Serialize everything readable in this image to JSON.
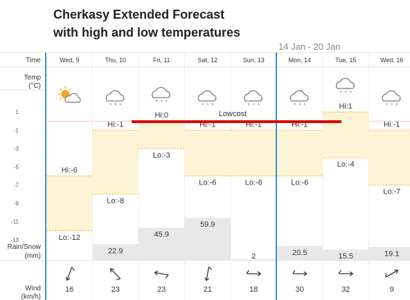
{
  "title_line1": "Cherkasy Extended Forecast",
  "title_line2": "with high and low temperatures",
  "date_range": "14 Jan - 20 Jan",
  "row_labels": {
    "time": "Time",
    "temp": "Temp",
    "temp_unit": "(°C)",
    "rain": "Rain/Snow",
    "rain_unit": "(mm)",
    "wind": "Wind",
    "wind_unit": "(km/h)"
  },
  "annotation": "Lowcost",
  "annotation_color": "#e00000",
  "colors": {
    "band": "#fdf3d6",
    "band_edge": "#f0c040",
    "rain_bar": "#e8e8e8",
    "week_line": "#3a8fc8"
  },
  "temp_ticks": [
    "1",
    "-1",
    "-3",
    "-5",
    "-7",
    "-9",
    "-11",
    "-13"
  ],
  "chart_data": {
    "type": "table",
    "days": [
      {
        "day": "Wed, 9",
        "icon": "sun-cloud-icon",
        "hi": -6,
        "lo": -12,
        "hi_label": "Hi:-6",
        "lo_label": "Lo:-12",
        "precip": "",
        "precip_mm": 0,
        "wind": "16",
        "wind_dir_deg": 200
      },
      {
        "day": "Thu, 10",
        "icon": "snow-cloud-icon",
        "hi": -1,
        "lo": -8,
        "hi_label": "Hi:-1",
        "lo_label": "Lo:-8",
        "precip": "22.9",
        "precip_mm": 22.9,
        "wind": "23",
        "wind_dir_deg": 315
      },
      {
        "day": "Fri, 11",
        "icon": "snow-cloud-icon",
        "hi": 0,
        "lo": -3,
        "hi_label": "Hi:0",
        "lo_label": "Lo:-3",
        "precip": "45.9",
        "precip_mm": 45.9,
        "wind": "23",
        "wind_dir_deg": 280
      },
      {
        "day": "Sat, 12",
        "icon": "snow-cloud-icon",
        "hi": -1,
        "lo": -6,
        "hi_label": "Hi:-1",
        "lo_label": "Lo:-6",
        "precip": "59.9",
        "precip_mm": 59.9,
        "wind": "21",
        "wind_dir_deg": 190
      },
      {
        "day": "Sun, 13",
        "icon": "snow-cloud-icon",
        "hi": -1,
        "lo": -6,
        "hi_label": "Hi:-1",
        "lo_label": "Lo:-6",
        "precip": "2",
        "precip_mm": 2,
        "wind": "18",
        "wind_dir_deg": 90
      },
      {
        "day": "Mon, 14",
        "icon": "snow-cloud-icon",
        "hi": -1,
        "lo": -6,
        "hi_label": "Hi:-1",
        "lo_label": "Lo:-6",
        "precip": "20.5",
        "precip_mm": 20.5,
        "wind": "30",
        "wind_dir_deg": 90
      },
      {
        "day": "Tue, 15",
        "icon": "snow-cloud-icon",
        "hi": 1,
        "lo": -4,
        "hi_label": "Hi:1",
        "lo_label": "Lo:-4",
        "precip": "15.5",
        "precip_mm": 15.5,
        "wind": "32",
        "wind_dir_deg": 90
      },
      {
        "day": "Wed, 16",
        "icon": "snow-cloud-icon",
        "hi": -1,
        "lo": -7,
        "hi_label": "Hi:-1",
        "lo_label": "Lo:-7",
        "precip": "19.1",
        "precip_mm": 19.1,
        "wind": "9",
        "wind_dir_deg": 60
      }
    ],
    "temp_range": [
      -14,
      2
    ],
    "precip_range": [
      0,
      60
    ]
  }
}
